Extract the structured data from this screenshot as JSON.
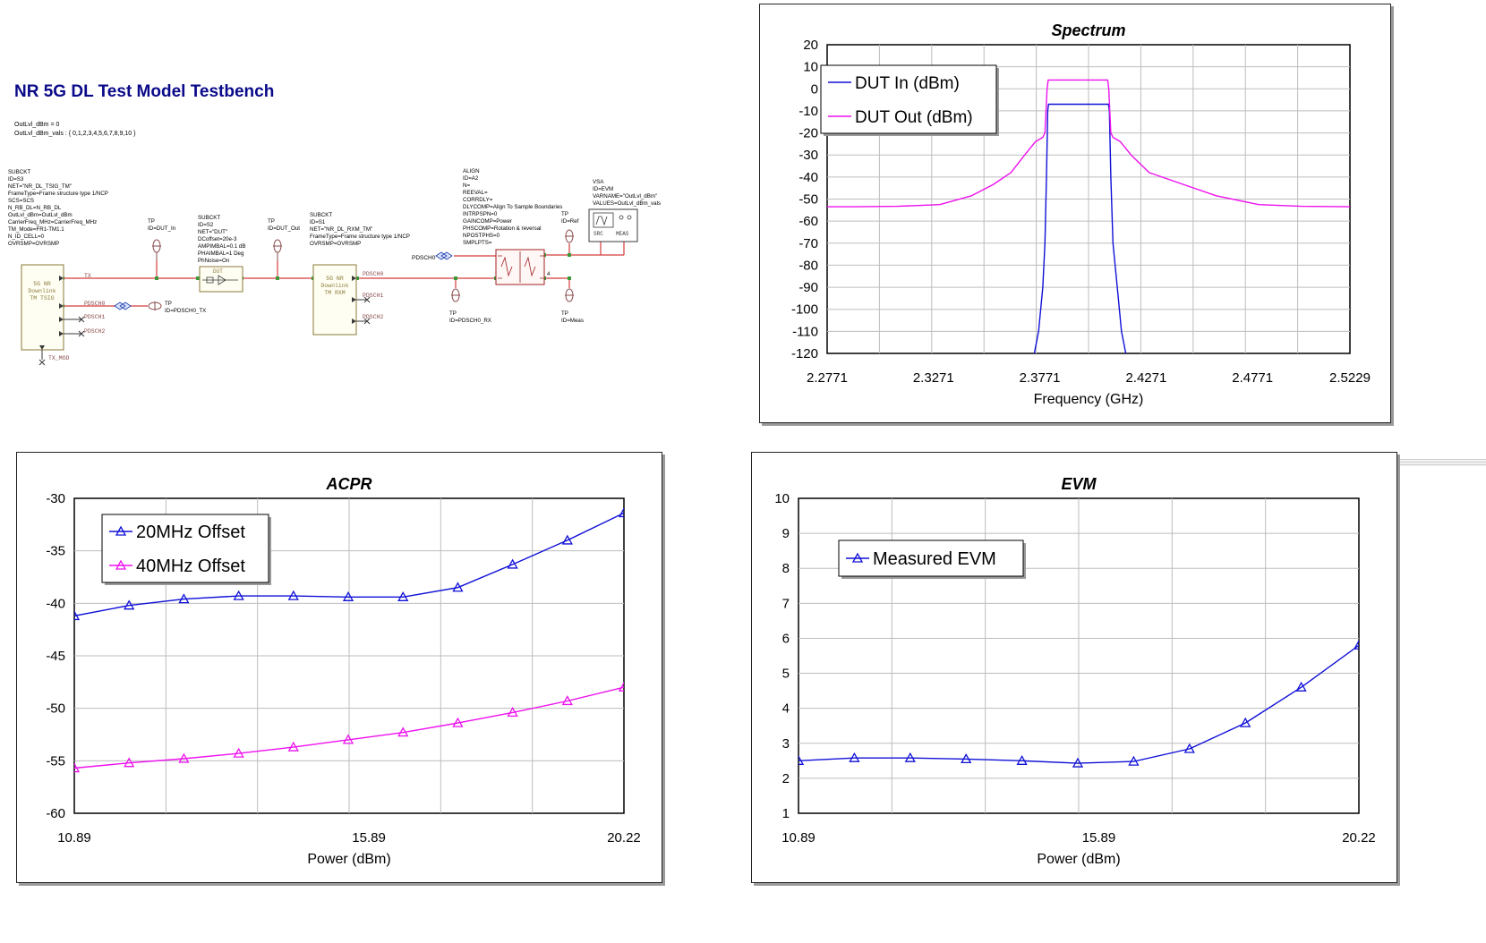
{
  "schematic": {
    "title": "NR 5G DL Test Model Testbench",
    "equations": [
      "OutLvl_dBm = 0",
      "OutLvl_dBm_vals : { 0,1,2,3,4,5,6,7,8,9,10 }"
    ],
    "blocks": {
      "tsig": {
        "params": [
          "SUBCKT",
          "ID=S3",
          "NET=\"NR_DL_TSIG_TM\"",
          "FrameType=Frame structure type 1/NCP",
          "SCS=SCS",
          "N_RB_DL=N_RB_DL",
          "OutLvl_dBm=OutLvl_dBm",
          "CarrierFreq_MHz=CarrierFreq_MHz",
          "TM_Mode=FR1-TM1.1",
          "N_ID_CELL=0",
          "OVRSMP=OVRSMP"
        ],
        "body": [
          "5G NR",
          "Downlink",
          "TM TSIG"
        ],
        "ports": [
          "TX",
          "PDSCH0",
          "PDSCH1",
          "PDSCH2",
          "TX_MOD"
        ]
      },
      "tp_dut_in": [
        "TP",
        "ID=DUT_In"
      ],
      "dut": {
        "params": [
          "SUBCKT",
          "ID=S2",
          "NET=\"DUT\"",
          "DCoffset=20e-3",
          "AMPIMBAL=0.1 dB",
          "PHAIMBAL=1 Deg",
          "PhNoise=On"
        ],
        "body": "DUT"
      },
      "tp_dut_out": [
        "TP",
        "ID=DUT_Out"
      ],
      "rxm": {
        "params": [
          "SUBCKT",
          "ID=S1",
          "NET=\"NR_DL_RXM_TM\"",
          "FrameType=Frame structure type 1/NCP",
          "OVRSMP=OVRSMP"
        ],
        "body": [
          "5G NR",
          "Downlink",
          "TM RXM"
        ],
        "ports": [
          "PDSCH0",
          "PDSCH1",
          "PDSCH2"
        ]
      },
      "tp_pdsch0_tx": [
        "TP",
        "ID=PDSCH0_TX"
      ],
      "tp_pdsch0_rx": [
        "TP",
        "ID=PDSCH0_RX"
      ],
      "align": [
        "ALIGN",
        "ID=A2",
        "N=",
        "REEVAL=",
        "CORRDLY=",
        "DLYCOMP=Align To Sample Boundaries",
        "INTRPSPN=0",
        "GAINCOMP=Power",
        "PHSCOMP=Rotation & reversal",
        "NPOSTPHS=0",
        "SMPLPTS="
      ],
      "tp_ref": [
        "TP",
        "ID=Ref"
      ],
      "tp_meas": [
        "TP",
        "ID=Meas"
      ],
      "vsa": {
        "params": [
          "VSA",
          "ID=EVM",
          "VARNAME=\"OutLvl_dBm\"",
          "VALUES=OutLvl_dBm_vals"
        ],
        "src": "SRC",
        "meas": "MEAS"
      },
      "pdsch_label": "PDSCH0"
    }
  },
  "colors": {
    "blue": "#1010d8",
    "magenta": "#ee10ee",
    "grid": "#b8b8b8",
    "schematic_wire": "#d43a3a",
    "title_blue": "#0a0a8a"
  },
  "chart_data": [
    {
      "id": "spectrum",
      "type": "line",
      "title": "Spectrum",
      "xlabel": "Frequency (GHz)",
      "ylabel": "",
      "xlim": [
        2.2771,
        2.5229
      ],
      "ylim": [
        -120,
        20
      ],
      "xticks": [
        "2.2771",
        "2.3271",
        "2.3771",
        "2.4271",
        "2.4771",
        "2.5229"
      ],
      "yticks": [
        "20",
        "10",
        "0",
        "-10",
        "-20",
        "-30",
        "-40",
        "-50",
        "-60",
        "-70",
        "-80",
        "-90",
        "-100",
        "-110",
        "-120"
      ],
      "grid": true,
      "legend": "top-left",
      "series": [
        {
          "name": "DUT In (dBm)",
          "color": "#1010d8",
          "x": [
            2.3745,
            2.3765,
            2.3785,
            2.3795,
            2.3802,
            2.3808,
            2.3812,
            2.39,
            2.4,
            2.4094,
            2.4098,
            2.4105,
            2.4115,
            2.4135,
            2.4155,
            2.4175
          ],
          "y": [
            -120,
            -110,
            -90,
            -70,
            -40,
            -10,
            -7,
            -7,
            -7,
            -7,
            -10,
            -40,
            -70,
            -90,
            -110,
            -120
          ]
        },
        {
          "name": "DUT Out (dBm)",
          "color": "#ee10ee",
          "x": [
            2.2771,
            2.29,
            2.31,
            2.33,
            2.345,
            2.355,
            2.3635,
            2.37,
            2.375,
            2.3785,
            2.3795,
            2.3805,
            2.381,
            2.395,
            2.409,
            2.4095,
            2.4105,
            2.4115,
            2.415,
            2.42,
            2.4285,
            2.445,
            2.46,
            2.48,
            2.5,
            2.5229
          ],
          "y": [
            -53.5,
            -53.5,
            -53.3,
            -52.5,
            -48.5,
            -43.5,
            -38,
            -30,
            -24,
            -22,
            -20,
            0,
            4,
            4,
            4,
            0,
            -20,
            -22,
            -24,
            -30,
            -38,
            -43.5,
            -48.5,
            -52.5,
            -53.3,
            -53.5
          ]
        }
      ]
    },
    {
      "id": "acpr",
      "type": "line",
      "title": "ACPR",
      "xlabel": "Power (dBm)",
      "ylabel": "",
      "xlim": [
        10.89,
        20.22
      ],
      "ylim": [
        -60,
        -30
      ],
      "xticks": [
        "10.89",
        "15.89",
        "20.22"
      ],
      "yticks": [
        "-30",
        "-35",
        "-40",
        "-45",
        "-50",
        "-55",
        "-60"
      ],
      "grid": true,
      "legend": "top-left",
      "series": [
        {
          "name": "20MHz Offset",
          "color": "#1010d8",
          "x": [
            10.89,
            11.82,
            12.75,
            13.68,
            14.61,
            15.54,
            16.47,
            17.4,
            18.33,
            19.26,
            20.22
          ],
          "y": [
            -41.2,
            -40.2,
            -39.6,
            -39.3,
            -39.3,
            -39.4,
            -39.4,
            -38.5,
            -36.3,
            -34,
            -31.4
          ]
        },
        {
          "name": "40MHz Offset",
          "color": "#ee10ee",
          "x": [
            10.89,
            11.82,
            12.75,
            13.68,
            14.61,
            15.54,
            16.47,
            17.4,
            18.33,
            19.26,
            20.22
          ],
          "y": [
            -55.7,
            -55.2,
            -54.8,
            -54.3,
            -53.7,
            -53,
            -52.3,
            -51.4,
            -50.4,
            -49.3,
            -48
          ]
        }
      ]
    },
    {
      "id": "evm",
      "type": "line",
      "title": "EVM",
      "xlabel": "Power (dBm)",
      "ylabel": "",
      "xlim": [
        10.89,
        20.22
      ],
      "ylim": [
        1,
        10
      ],
      "xticks": [
        "10.89",
        "15.89",
        "20.22"
      ],
      "yticks": [
        "10",
        "9",
        "8",
        "7",
        "6",
        "5",
        "4",
        "3",
        "2",
        "1"
      ],
      "grid": true,
      "legend": "top-left",
      "series": [
        {
          "name": "Measured EVM",
          "color": "#1010d8",
          "x": [
            10.89,
            11.82,
            12.75,
            13.68,
            14.61,
            15.54,
            16.47,
            17.4,
            18.33,
            19.26,
            20.22
          ],
          "y": [
            2.5,
            2.58,
            2.58,
            2.55,
            2.5,
            2.43,
            2.48,
            2.84,
            3.58,
            4.6,
            5.8
          ]
        }
      ]
    }
  ]
}
